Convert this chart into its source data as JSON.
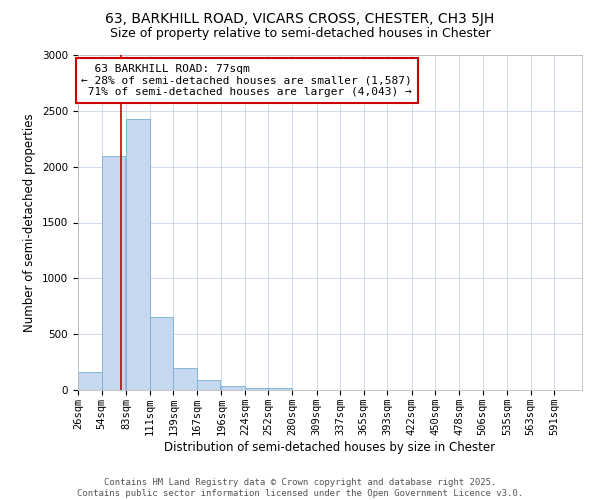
{
  "title": "63, BARKHILL ROAD, VICARS CROSS, CHESTER, CH3 5JH",
  "subtitle": "Size of property relative to semi-detached houses in Chester",
  "xlabel": "Distribution of semi-detached houses by size in Chester",
  "ylabel": "Number of semi-detached properties",
  "property_size": 77,
  "property_label": "63 BARKHILL ROAD: 77sqm",
  "pct_smaller": 28,
  "pct_larger": 71,
  "count_smaller": 1587,
  "count_larger": 4043,
  "bin_labels": [
    "26sqm",
    "54sqm",
    "83sqm",
    "111sqm",
    "139sqm",
    "167sqm",
    "196sqm",
    "224sqm",
    "252sqm",
    "280sqm",
    "309sqm",
    "337sqm",
    "365sqm",
    "393sqm",
    "422sqm",
    "450sqm",
    "478sqm",
    "506sqm",
    "535sqm",
    "563sqm",
    "591sqm"
  ],
  "bin_edges": [
    26,
    54,
    83,
    111,
    139,
    167,
    196,
    224,
    252,
    280,
    309,
    337,
    365,
    393,
    422,
    450,
    478,
    506,
    535,
    563,
    591
  ],
  "bar_heights": [
    160,
    2100,
    2430,
    650,
    200,
    90,
    35,
    20,
    20,
    0,
    0,
    0,
    0,
    0,
    0,
    0,
    0,
    0,
    0,
    0
  ],
  "bar_color": "#c5d8f0",
  "bar_edgecolor": "#7aafd4",
  "redline_color": "#cc0000",
  "annotation_box_color": "#cc0000",
  "background_color": "#ffffff",
  "grid_color": "#c8d4e8",
  "ylim": [
    0,
    3000
  ],
  "yticks": [
    0,
    500,
    1000,
    1500,
    2000,
    2500,
    3000
  ],
  "title_fontsize": 10,
  "subtitle_fontsize": 9,
  "axis_label_fontsize": 8.5,
  "tick_fontsize": 7.5,
  "annotation_fontsize": 8,
  "footer_text": "Contains HM Land Registry data © Crown copyright and database right 2025.\nContains public sector information licensed under the Open Government Licence v3.0.",
  "footer_fontsize": 6.5
}
